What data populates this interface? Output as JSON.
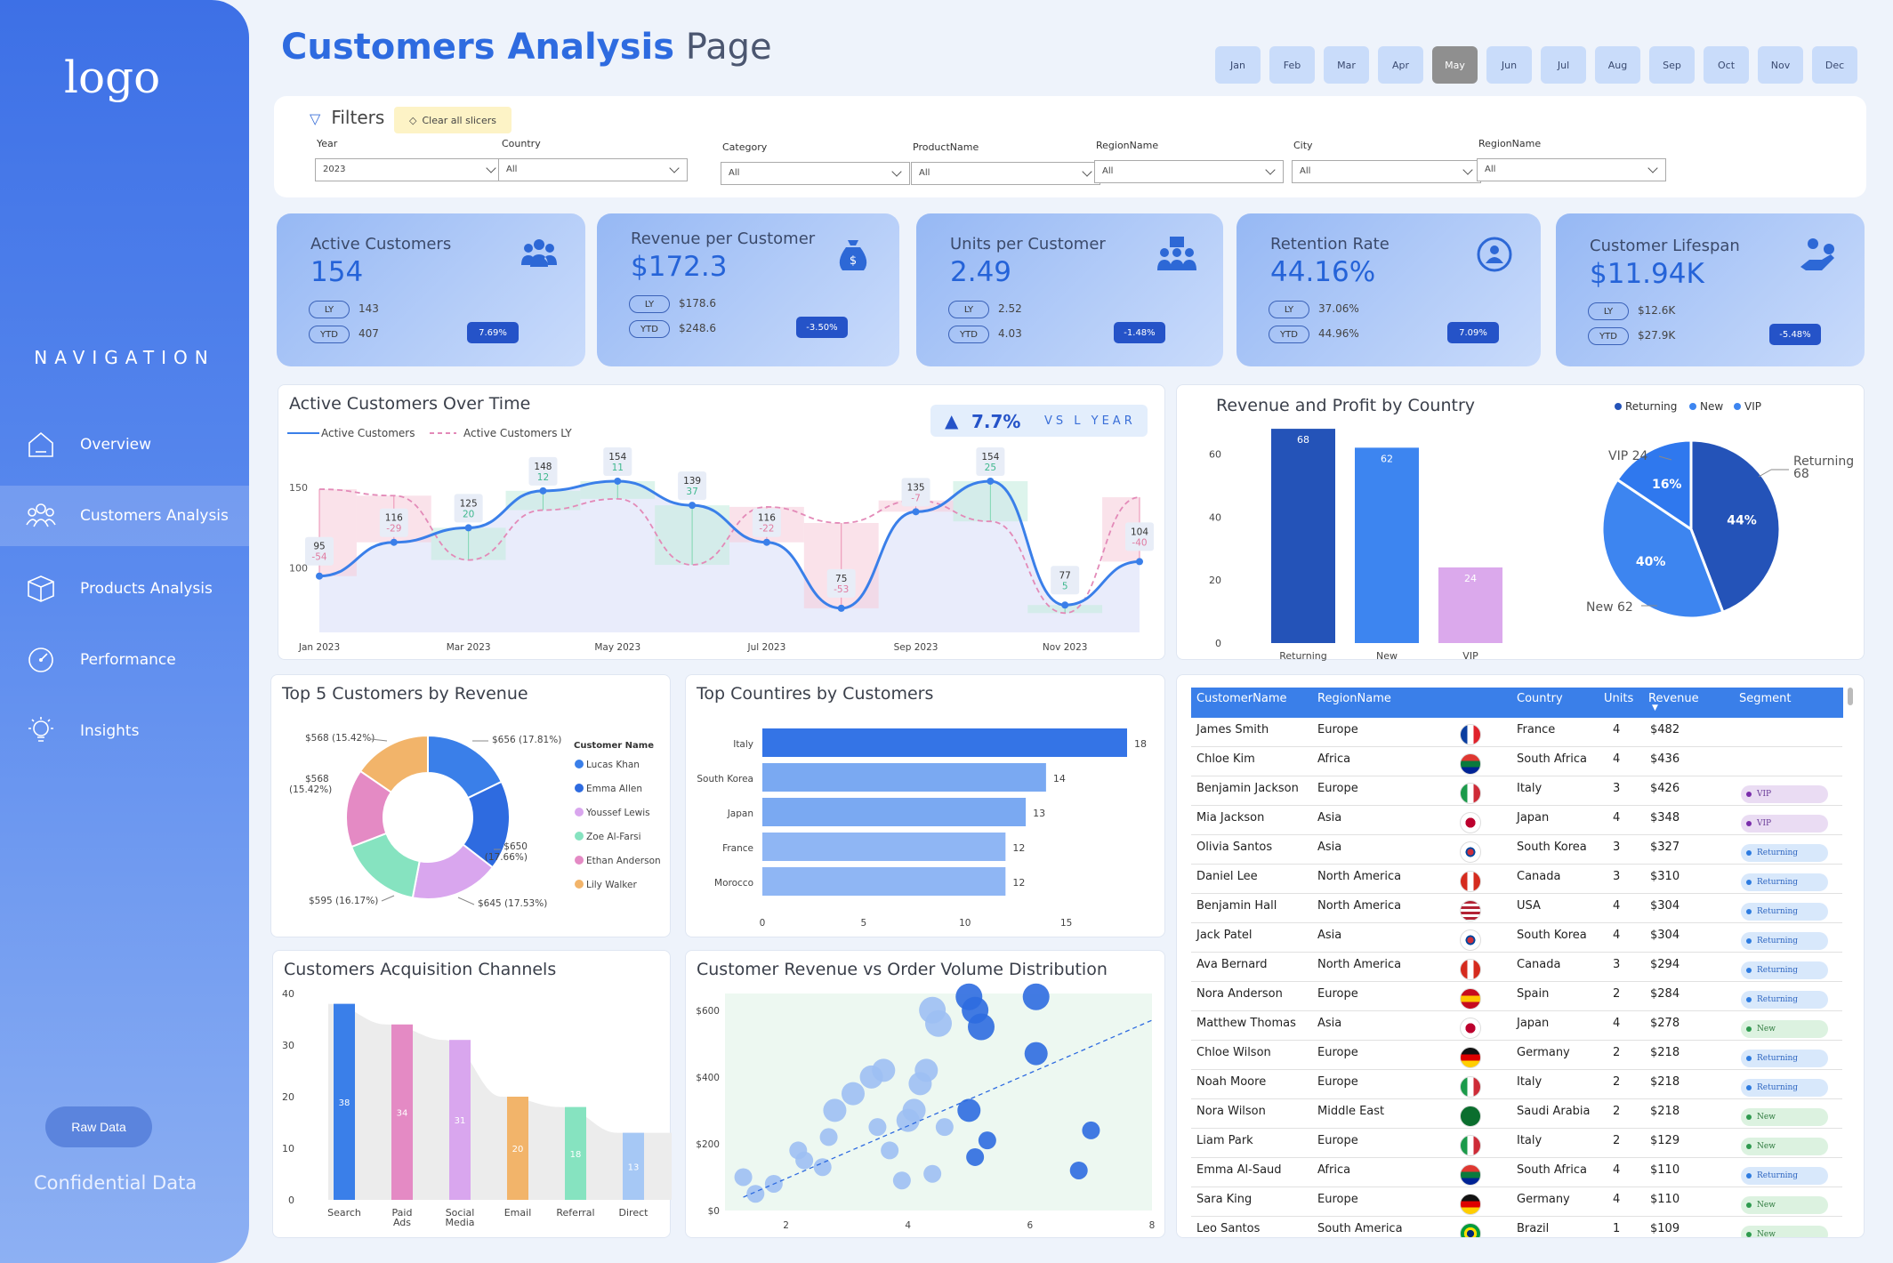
{
  "sidebar": {
    "logo": "logo",
    "nav_title": "NAVIGATION",
    "items": [
      {
        "label": "Overview"
      },
      {
        "label": "Customers Analysis"
      },
      {
        "label": "Products Analysis"
      },
      {
        "label": "Performance"
      },
      {
        "label": "Insights"
      }
    ],
    "raw_button": "Raw Data",
    "confidential": "Confidential Data"
  },
  "header": {
    "title_main": "Customers Analysis",
    "title_rest": "Page",
    "months": [
      "Jan",
      "Feb",
      "Mar",
      "Apr",
      "May",
      "Jun",
      "Jul",
      "Aug",
      "Sep",
      "Oct",
      "Nov",
      "Dec"
    ],
    "selected_month": "May"
  },
  "filters": {
    "title": "Filters",
    "clear": "Clear all slicers",
    "items": [
      {
        "label": "Year",
        "value": "2023"
      },
      {
        "label": "Country",
        "value": "All"
      },
      {
        "label": "Category",
        "value": "All"
      },
      {
        "label": "ProductName",
        "value": "All"
      },
      {
        "label": "RegionName",
        "value": "All"
      },
      {
        "label": "City",
        "value": "All"
      },
      {
        "label": "RegionName",
        "value": "All"
      }
    ]
  },
  "kpis": [
    {
      "label": "Active Customers",
      "value": "154",
      "ly_label": "LY",
      "ly": "143",
      "ytd_label": "YTD",
      "ytd": "407",
      "change": "7.69%",
      "icon": "users-icon"
    },
    {
      "label": "Revenue per Customer",
      "value": "$172.3",
      "ly_label": "LY",
      "ly": "$178.6",
      "ytd_label": "YTD",
      "ytd": "$248.6",
      "change": "-3.50%",
      "icon": "money-bag-icon"
    },
    {
      "label": "Units per Customer",
      "value": "2.49",
      "ly_label": "LY",
      "ly": "2.52",
      "ytd_label": "YTD",
      "ytd": "4.03",
      "change": "-1.48%",
      "icon": "team-box-icon"
    },
    {
      "label": "Retention Rate",
      "value": "44.16%",
      "ly_label": "LY",
      "ly": "37.06%",
      "ytd_label": "YTD",
      "ytd": "44.96%",
      "change": "7.09%",
      "icon": "retention-icon"
    },
    {
      "label": "Customer Lifespan",
      "value": "$11.94K",
      "ly_label": "LY",
      "ly": "$12.6K",
      "ytd_label": "YTD",
      "ytd": "$27.9K",
      "change": "-5.48%",
      "icon": "hand-user-icon"
    }
  ],
  "line_card": {
    "title": "Active Customers Over Time",
    "legend_current": "Active Customers",
    "legend_ly": "Active Customers LY",
    "delta": "7.7%",
    "delta_label": "VS L YEAR"
  },
  "country_card": {
    "title": "Revenue and Profit by Country",
    "legend": [
      "Returning",
      "New",
      "VIP"
    ]
  },
  "top5_card": {
    "title": "Top 5 Customers by Revenue",
    "legend_title": "Customer Name"
  },
  "countries_card": {
    "title": "Top Countires by Customers"
  },
  "channels_card": {
    "title": "Customers Acquisition Channels"
  },
  "scatter_card": {
    "title": "Customer Revenue vs Order Volume Distribution"
  },
  "chart_data": [
    {
      "type": "line",
      "x": [
        "Jan 2023",
        "Feb 2023",
        "Mar 2023",
        "Apr 2023",
        "May 2023",
        "Jun 2023",
        "Jul 2023",
        "Aug 2023",
        "Sep 2023",
        "Oct 2023",
        "Nov 2023",
        "Dec 2023"
      ],
      "xtick_labels": [
        "Jan 2023",
        "Mar 2023",
        "May 2023",
        "Jul 2023",
        "Sep 2023",
        "Nov 2023"
      ],
      "yticks": [
        100,
        150
      ],
      "ylim": [
        60,
        175
      ],
      "series": [
        {
          "name": "Active Customers",
          "values": [
            95,
            116,
            125,
            148,
            154,
            139,
            116,
            75,
            135,
            154,
            77,
            104
          ]
        },
        {
          "name": "Active Customers LY",
          "values": [
            149,
            145,
            105,
            136,
            143,
            102,
            138,
            128,
            142,
            129,
            72,
            144
          ]
        }
      ],
      "differences": [
        "-54",
        "-29",
        "20",
        "12",
        "11",
        "37",
        "-22",
        "-53",
        "-7",
        "25",
        "5",
        "-40"
      ]
    },
    {
      "type": "bar",
      "categories": [
        "Returning",
        "New",
        "VIP"
      ],
      "values": [
        68,
        62,
        24
      ],
      "ylim": [
        0,
        70
      ],
      "yticks": [
        0,
        20,
        40,
        60
      ]
    },
    {
      "type": "pie",
      "labels": [
        "Returning",
        "New",
        "VIP"
      ],
      "values": [
        68,
        62,
        24
      ],
      "percent_labels": [
        "44%",
        "40%",
        "16%"
      ],
      "outer_labels": [
        "Returning 68",
        "New 62",
        "VIP 24"
      ]
    },
    {
      "type": "pie",
      "title": "Top 5 Customers by Revenue",
      "labels": [
        "Lucas Khan",
        "Emma Allen",
        "Youssef Lewis",
        "Zoe Al-Farsi",
        "Ethan Anderson",
        "Lily Walker"
      ],
      "values": [
        656,
        650,
        645,
        595,
        568,
        568
      ],
      "outer_labels": [
        "$656 (17.81%)",
        "$650 (17.66%)",
        "$645 (17.53%)",
        "$595 (16.17%)",
        "$568 (15.42%)",
        "$568 (15.42%)"
      ]
    },
    {
      "type": "bar",
      "orientation": "horizontal",
      "categories": [
        "Italy",
        "South Korea",
        "Japan",
        "France",
        "Morocco"
      ],
      "values": [
        18,
        14,
        13,
        12,
        12
      ],
      "xlim": [
        0,
        18
      ],
      "xticks": [
        0,
        5,
        10,
        15
      ]
    },
    {
      "type": "bar",
      "categories": [
        "Search",
        "Paid Ads",
        "Social Media",
        "Email",
        "Referral",
        "Direct"
      ],
      "values": [
        38,
        34,
        31,
        20,
        18,
        13
      ],
      "ylim": [
        0,
        40
      ],
      "yticks": [
        0,
        10,
        20,
        30,
        40
      ]
    },
    {
      "type": "scatter",
      "xlabel": "",
      "ylabel": "",
      "xlim": [
        1,
        8
      ],
      "ylim": [
        0,
        650
      ],
      "xticks": [
        2,
        4,
        6,
        8
      ],
      "ytick_labels": [
        "$0",
        "$200",
        "$400",
        "$600"
      ],
      "points": [
        [
          1.3,
          100
        ],
        [
          1.5,
          50
        ],
        [
          1.8,
          80
        ],
        [
          2.2,
          180
        ],
        [
          2.3,
          150
        ],
        [
          2.6,
          130
        ],
        [
          2.7,
          220
        ],
        [
          2.8,
          300
        ],
        [
          3.1,
          350
        ],
        [
          3.4,
          400
        ],
        [
          3.5,
          250
        ],
        [
          3.6,
          420
        ],
        [
          3.7,
          180
        ],
        [
          3.9,
          90
        ],
        [
          4.0,
          270
        ],
        [
          4.1,
          300
        ],
        [
          4.2,
          380
        ],
        [
          4.3,
          420
        ],
        [
          4.4,
          600
        ],
        [
          4.5,
          560
        ],
        [
          4.6,
          250
        ],
        [
          4.4,
          110
        ],
        [
          5.0,
          640
        ],
        [
          5.1,
          600
        ],
        [
          5.2,
          550
        ],
        [
          5.0,
          300
        ],
        [
          5.3,
          210
        ],
        [
          5.1,
          160
        ],
        [
          6.1,
          640
        ],
        [
          6.1,
          470
        ],
        [
          7.0,
          240
        ],
        [
          6.8,
          120
        ]
      ],
      "trend": [
        [
          1.3,
          40
        ],
        [
          8.0,
          570
        ]
      ]
    }
  ],
  "table": {
    "headers": [
      "CustomerName",
      "RegionName",
      "",
      "Country",
      "Units",
      "Revenue",
      "Segment"
    ],
    "rows": [
      {
        "name": "James Smith",
        "region": "Europe",
        "flag": "fr",
        "country": "France",
        "units": "4",
        "revenue": "$482",
        "segment": ""
      },
      {
        "name": "Chloe Kim",
        "region": "Africa",
        "flag": "za",
        "country": "South Africa",
        "units": "4",
        "revenue": "$436",
        "segment": ""
      },
      {
        "name": "Benjamin Jackson",
        "region": "Europe",
        "flag": "it",
        "country": "Italy",
        "units": "3",
        "revenue": "$426",
        "segment": "VIP"
      },
      {
        "name": "Mia Jackson",
        "region": "Asia",
        "flag": "jp",
        "country": "Japan",
        "units": "4",
        "revenue": "$348",
        "segment": "VIP"
      },
      {
        "name": "Olivia Santos",
        "region": "Asia",
        "flag": "kr",
        "country": "South Korea",
        "units": "3",
        "revenue": "$327",
        "segment": "Returning"
      },
      {
        "name": "Daniel Lee",
        "region": "North America",
        "flag": "ca",
        "country": "Canada",
        "units": "3",
        "revenue": "$310",
        "segment": "Returning"
      },
      {
        "name": "Benjamin Hall",
        "region": "North America",
        "flag": "us",
        "country": "USA",
        "units": "4",
        "revenue": "$304",
        "segment": "Returning"
      },
      {
        "name": "Jack Patel",
        "region": "Asia",
        "flag": "kr",
        "country": "South Korea",
        "units": "4",
        "revenue": "$304",
        "segment": "Returning"
      },
      {
        "name": "Ava Bernard",
        "region": "North America",
        "flag": "ca",
        "country": "Canada",
        "units": "3",
        "revenue": "$294",
        "segment": "Returning"
      },
      {
        "name": "Nora Anderson",
        "region": "Europe",
        "flag": "es",
        "country": "Spain",
        "units": "2",
        "revenue": "$284",
        "segment": "Returning"
      },
      {
        "name": "Matthew Thomas",
        "region": "Asia",
        "flag": "jp",
        "country": "Japan",
        "units": "4",
        "revenue": "$278",
        "segment": "New"
      },
      {
        "name": "Chloe Wilson",
        "region": "Europe",
        "flag": "de",
        "country": "Germany",
        "units": "2",
        "revenue": "$218",
        "segment": "Returning"
      },
      {
        "name": "Noah Moore",
        "region": "Europe",
        "flag": "it",
        "country": "Italy",
        "units": "2",
        "revenue": "$218",
        "segment": "Returning"
      },
      {
        "name": "Nora Wilson",
        "region": "Middle East",
        "flag": "sa",
        "country": "Saudi Arabia",
        "units": "2",
        "revenue": "$218",
        "segment": "New"
      },
      {
        "name": "Liam Park",
        "region": "Europe",
        "flag": "it",
        "country": "Italy",
        "units": "2",
        "revenue": "$129",
        "segment": "New"
      },
      {
        "name": "Emma Al-Saud",
        "region": "Africa",
        "flag": "za",
        "country": "South Africa",
        "units": "4",
        "revenue": "$110",
        "segment": "Returning"
      },
      {
        "name": "Sara King",
        "region": "Europe",
        "flag": "de",
        "country": "Germany",
        "units": "4",
        "revenue": "$110",
        "segment": "New"
      },
      {
        "name": "Leo Santos",
        "region": "South America",
        "flag": "br",
        "country": "Brazil",
        "units": "1",
        "revenue": "$109",
        "segment": "New"
      }
    ]
  },
  "colors": {
    "accent": "#2e6be0",
    "returning": "#2453b8",
    "new": "#3d85f0",
    "vip": "#dba9ec"
  }
}
